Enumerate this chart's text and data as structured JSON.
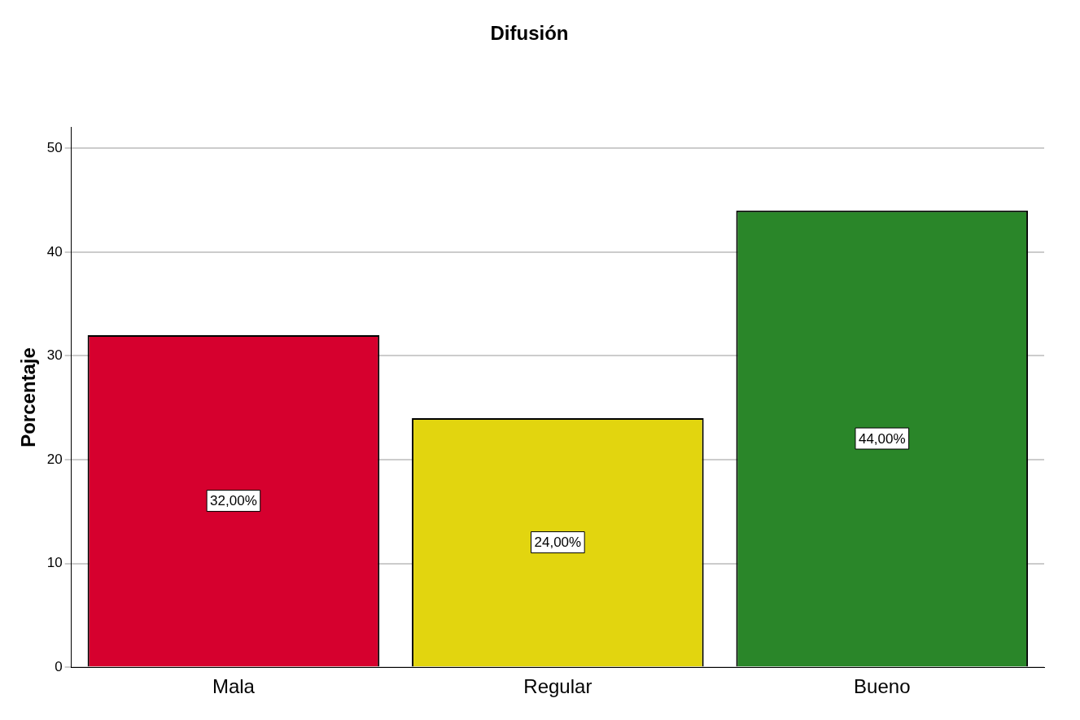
{
  "chart_data": {
    "type": "bar",
    "title": "Difusión",
    "ylabel": "Porcentaje",
    "categories": [
      "Mala",
      "Regular",
      "Bueno"
    ],
    "values": [
      32,
      24,
      44
    ],
    "colors": [
      "#d6002e",
      "#e2d50f",
      "#2a8629"
    ],
    "value_labels": [
      "32,00%",
      "24,00%",
      "44,00%"
    ],
    "ylim": [
      0,
      52
    ],
    "yticks": [
      0,
      10,
      20,
      30,
      40,
      50
    ],
    "grid": "y",
    "legend": false
  }
}
